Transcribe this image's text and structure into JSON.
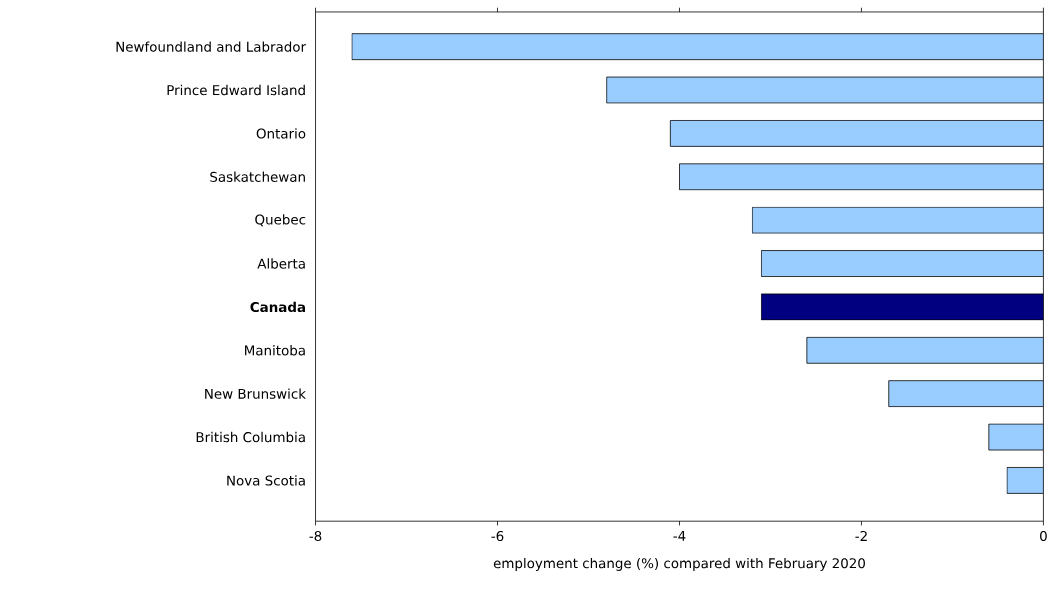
{
  "chart_data": {
    "type": "bar",
    "orientation": "horizontal",
    "xlabel": "employment change (%) compared with February 2020",
    "categories": [
      "Newfoundland and Labrador",
      "Prince Edward Island",
      "Ontario",
      "Saskatchewan",
      "Quebec",
      "Alberta",
      "**Canada**",
      "Manitoba",
      "New Brunswick",
      "British Columbia",
      "Nova Scotia"
    ],
    "values": [
      -7.6,
      -4.8,
      -4.1,
      -4.0,
      -3.2,
      -3.1,
      -3.1,
      -2.6,
      -1.7,
      -0.6,
      -0.4
    ],
    "colors": [
      "#99ccff",
      "#99ccff",
      "#99ccff",
      "#99ccff",
      "#99ccff",
      "#99ccff",
      "#000080",
      "#99ccff",
      "#99ccff",
      "#99ccff",
      "#99ccff"
    ],
    "xlim": [
      -8,
      0
    ],
    "xticks": [
      -8,
      -6,
      -4,
      -2,
      0
    ],
    "grid": false,
    "legend": false
  }
}
